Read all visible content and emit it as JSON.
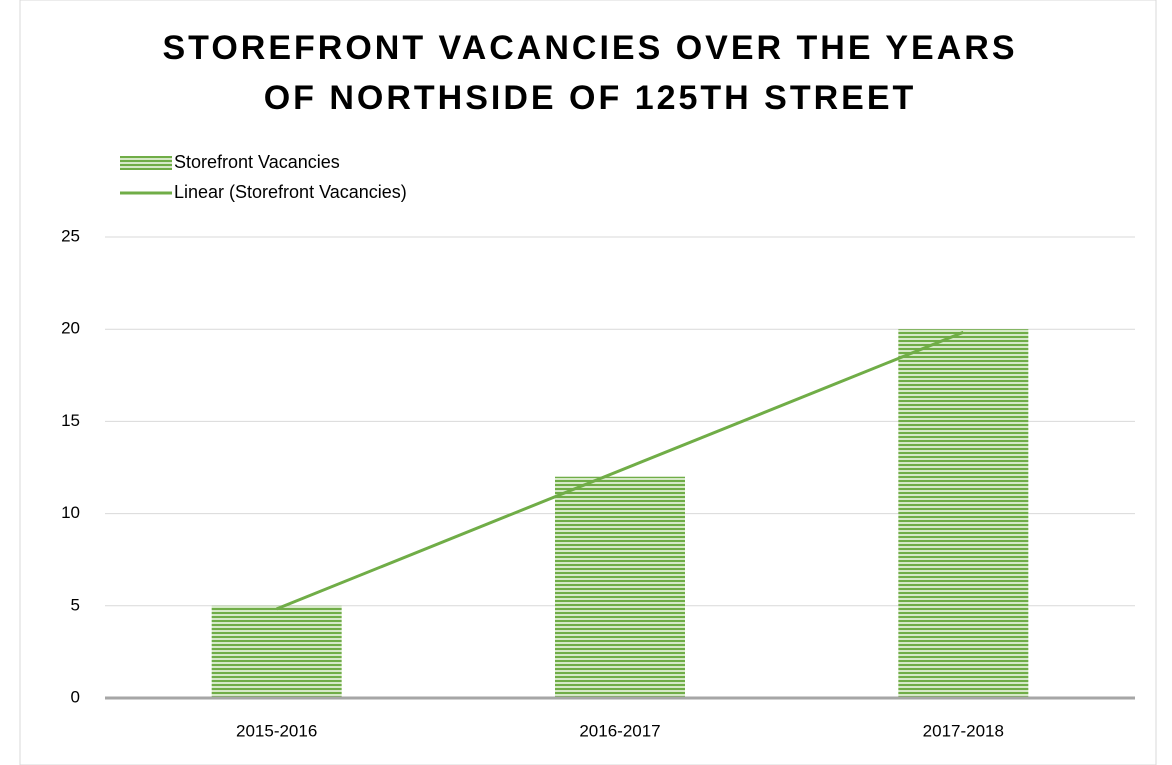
{
  "chart_data": {
    "type": "bar",
    "title": [
      "STOREFRONT VACANCIES OVER THE YEARS",
      "OF NORTHSIDE OF 125TH STREET"
    ],
    "categories": [
      "2015-2016",
      "2016-2017",
      "2017-2018"
    ],
    "series": [
      {
        "name": "Storefront Vacancies",
        "color": "#70ad47",
        "values": [
          5,
          12,
          20
        ]
      }
    ],
    "trendline": {
      "type": "linear",
      "name": "Linear (Storefront Vacancies)",
      "color": "#70ad47"
    },
    "ylim": [
      0,
      25
    ],
    "yticks": [
      0,
      5,
      10,
      15,
      20,
      25
    ],
    "grid": true,
    "legend": "top-left"
  }
}
